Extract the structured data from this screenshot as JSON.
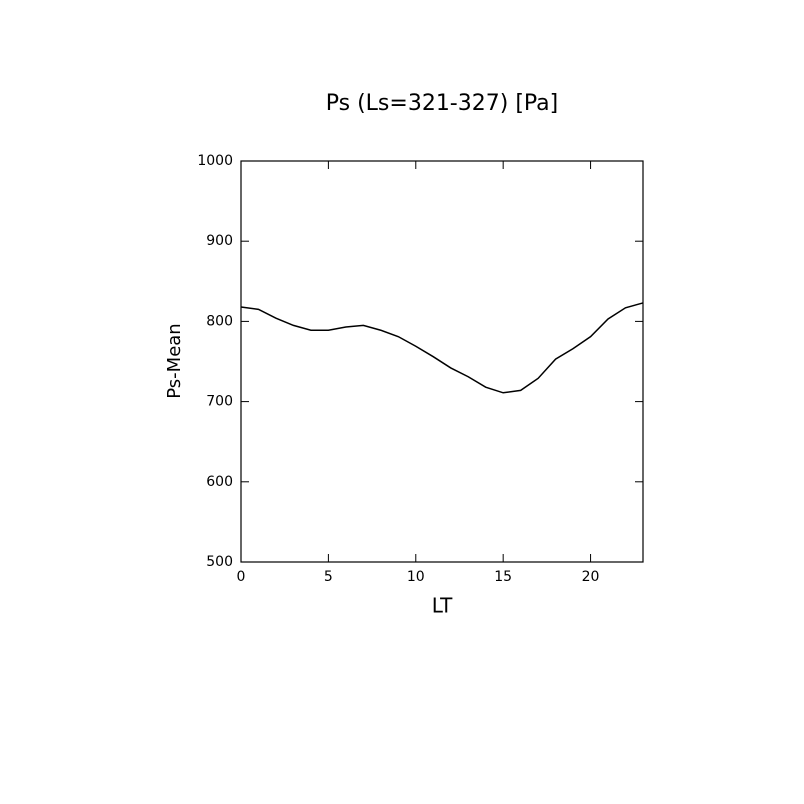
{
  "chart_data": {
    "type": "line",
    "title": "Ps (Ls=321-327) [Pa]",
    "x_label": "LT",
    "y_label": "Ps-Mean",
    "x": [
      0,
      1,
      2,
      3,
      4,
      5,
      6,
      7,
      8,
      9,
      10,
      11,
      12,
      13,
      14,
      15,
      16,
      17,
      18,
      19,
      20,
      21,
      22,
      23
    ],
    "series": [
      {
        "name": "Ps-Mean",
        "color": "#000000",
        "values": [
          818,
          815,
          804,
          795,
          789,
          789,
          793,
          795,
          789,
          781,
          769,
          756,
          742,
          731,
          718,
          711,
          714,
          729,
          753,
          766,
          781,
          803,
          817,
          823
        ]
      }
    ],
    "xlim": [
      0,
      23
    ],
    "xticks": [
      0,
      5,
      10,
      15,
      20
    ],
    "ylim": [
      500,
      1000
    ],
    "yticks": [
      500,
      600,
      700,
      800,
      900,
      1000
    ]
  }
}
